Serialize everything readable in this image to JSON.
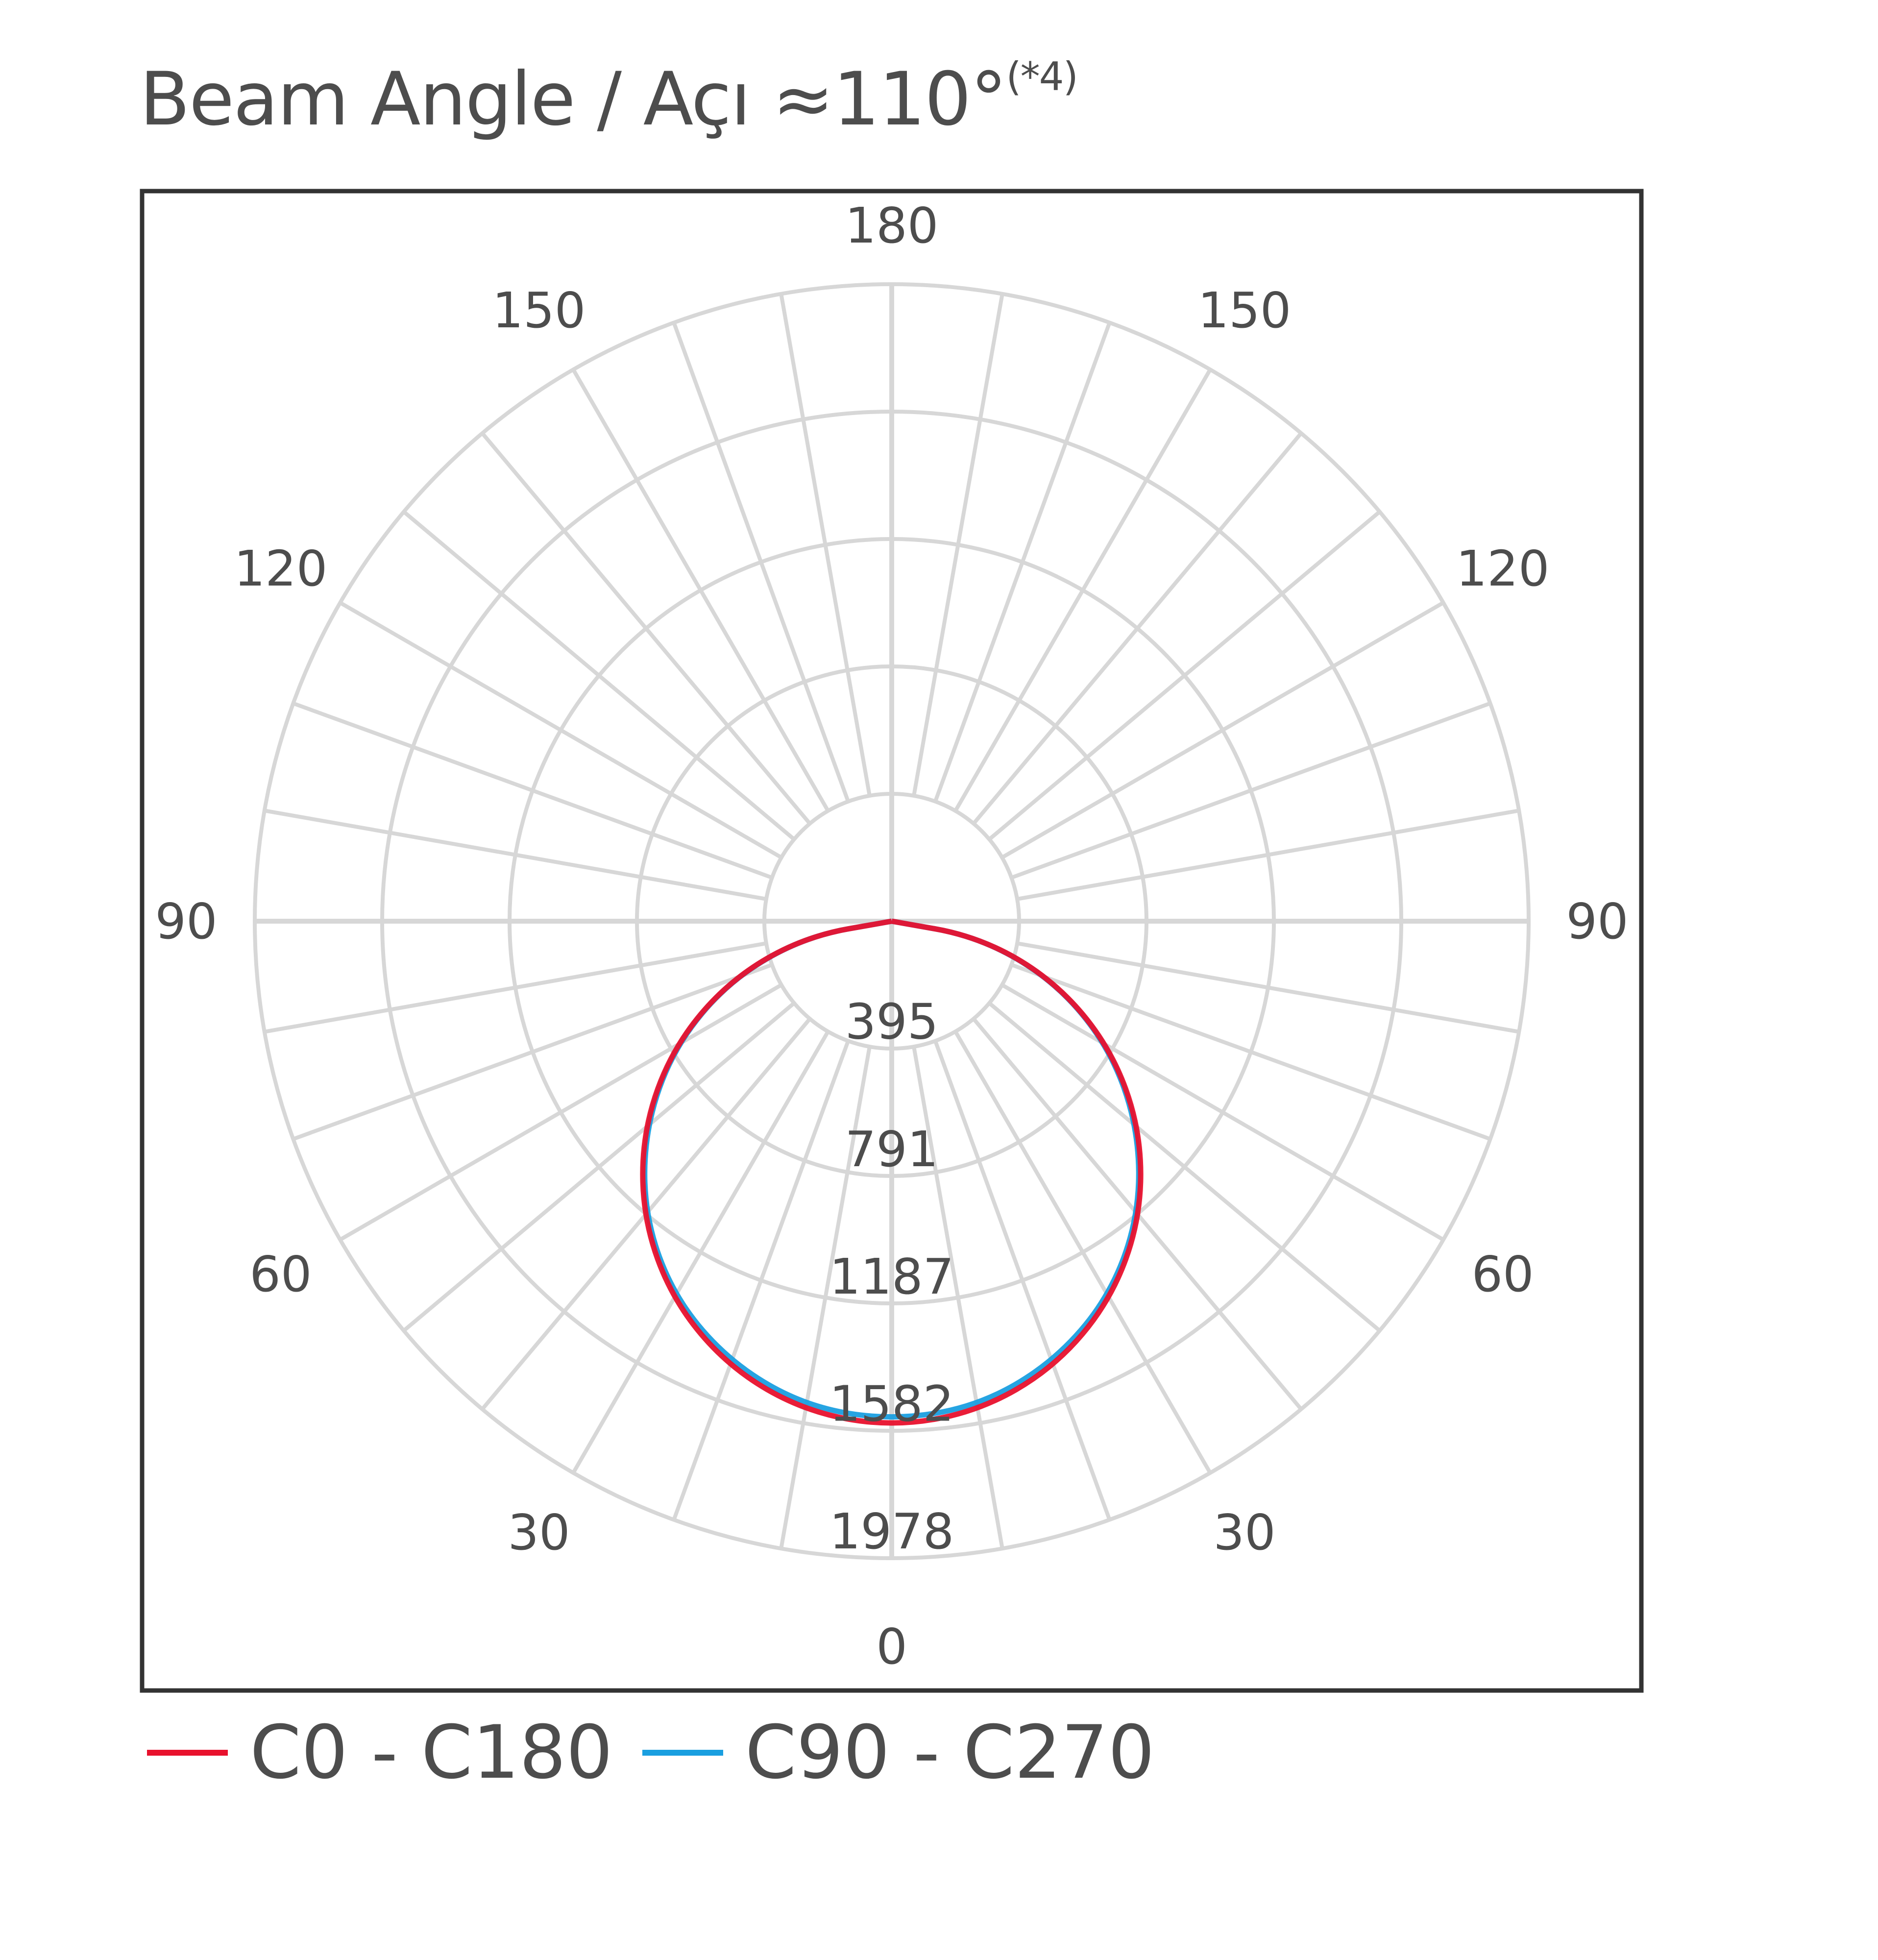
{
  "title": "Beam Angle / Açı ≈110°",
  "title_note": "(*4)",
  "chart_data": {
    "type": "polar",
    "title": "Beam Angle / Açı ≈110°",
    "angle_labels_left": [
      "180",
      "150",
      "120",
      "90",
      "60",
      "30",
      "0"
    ],
    "angle_labels_right": [
      "150",
      "120",
      "90",
      "60",
      "30"
    ],
    "angle_label_values": [
      0,
      30,
      60,
      90,
      120,
      150,
      180
    ],
    "radial_tick_labels": [
      "395",
      "791",
      "1187",
      "1582",
      "1978"
    ],
    "radial_tick_values": [
      395,
      791,
      1187,
      1582,
      1978
    ],
    "rlim": [
      0,
      1978
    ],
    "grid": true,
    "legend_position": "bottom",
    "series": [
      {
        "name": "C0 - C180",
        "color": "#e8112d",
        "angles": [
          0,
          10,
          20,
          30,
          40,
          50,
          60,
          70,
          80,
          90
        ],
        "values": [
          1570,
          1546,
          1475,
          1360,
          1203,
          1009,
          785,
          537,
          273,
          0
        ]
      },
      {
        "name": "C90 - C270",
        "color": "#1a9fe0",
        "angles": [
          0,
          10,
          20,
          30,
          40,
          50,
          60,
          70,
          80,
          90
        ],
        "values": [
          1550,
          1530,
          1460,
          1350,
          1195,
          1000,
          780,
          535,
          272,
          0
        ]
      }
    ]
  }
}
